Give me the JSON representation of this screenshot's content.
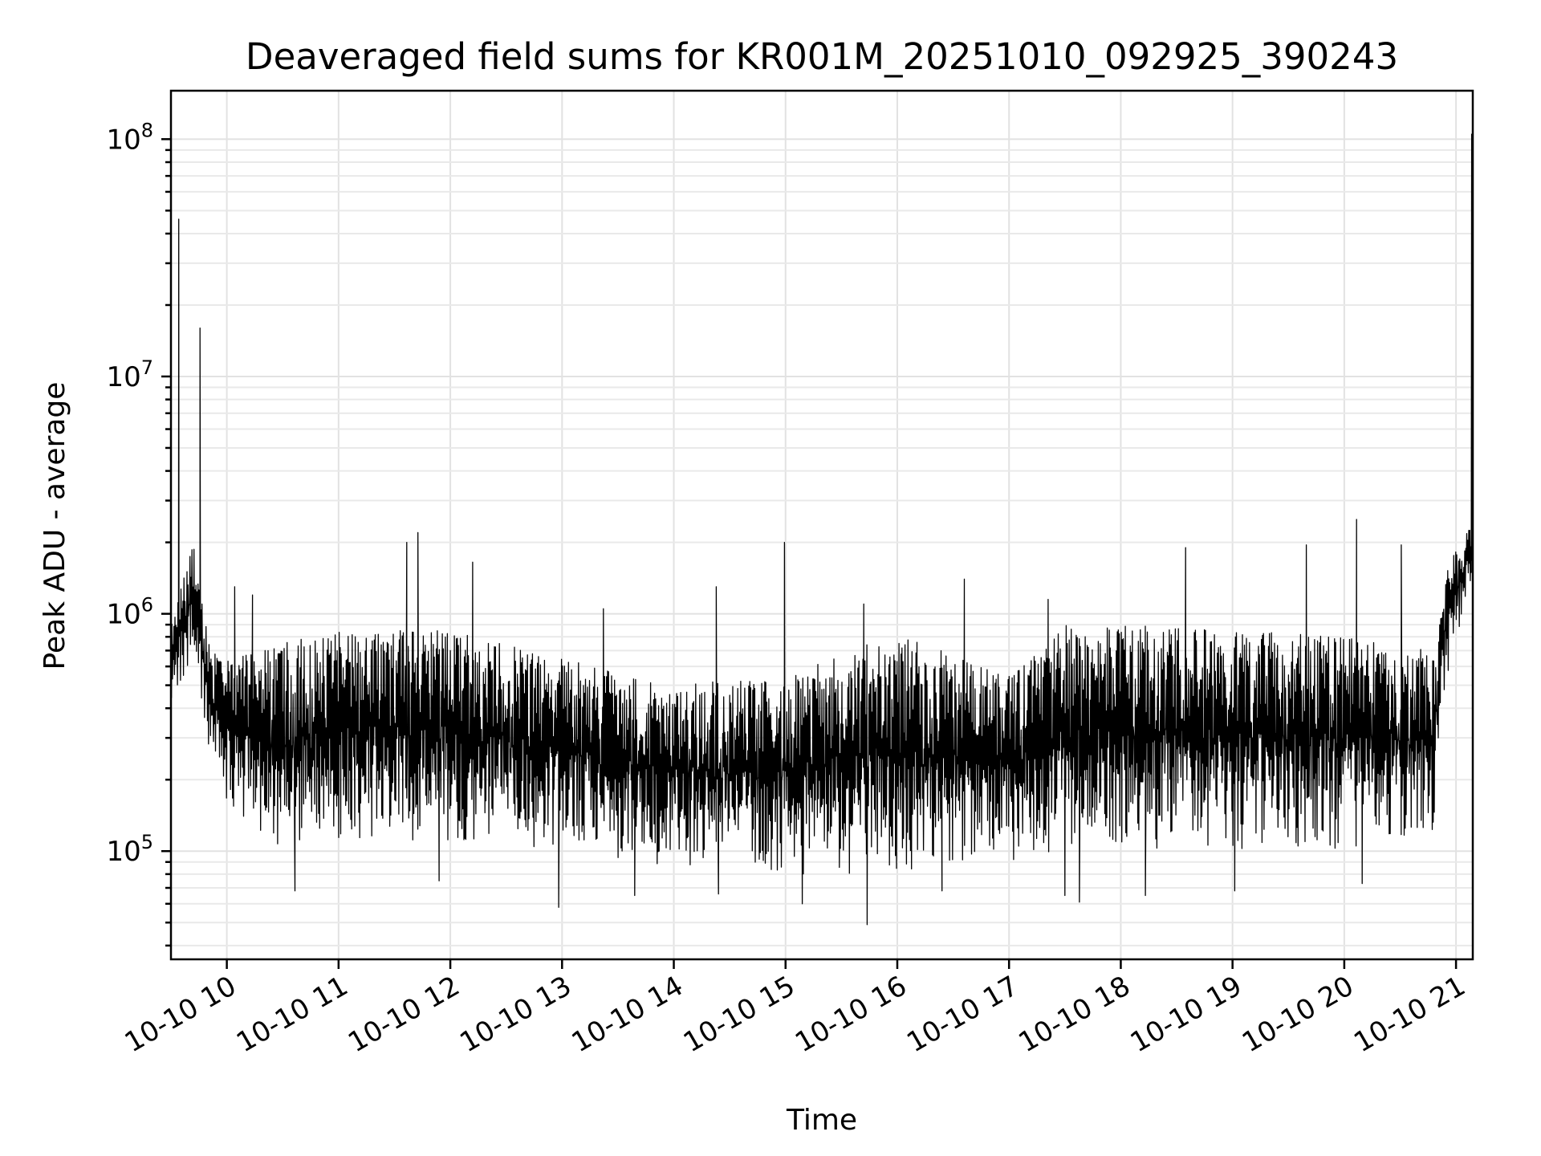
{
  "chart_data": {
    "type": "line",
    "title": "Deaveraged field sums for KR001M_20251010_092925_390243",
    "xlabel": "Time",
    "ylabel": "Peak ADU - average",
    "yscale": "log",
    "ylim": [
      35000,
      160000000
    ],
    "xlim_hours": [
      9.5,
      21.15
    ],
    "grid": true,
    "x_ticks": [
      {
        "hour": 10,
        "label": "10-10 10"
      },
      {
        "hour": 11,
        "label": "10-10 11"
      },
      {
        "hour": 12,
        "label": "10-10 12"
      },
      {
        "hour": 13,
        "label": "10-10 13"
      },
      {
        "hour": 14,
        "label": "10-10 14"
      },
      {
        "hour": 15,
        "label": "10-10 15"
      },
      {
        "hour": 16,
        "label": "10-10 16"
      },
      {
        "hour": 17,
        "label": "10-10 17"
      },
      {
        "hour": 18,
        "label": "10-10 18"
      },
      {
        "hour": 19,
        "label": "10-10 19"
      },
      {
        "hour": 20,
        "label": "10-10 20"
      },
      {
        "hour": 21,
        "label": "10-10 21"
      }
    ],
    "y_ticks": [
      {
        "value": 100000,
        "base": "10",
        "exp": "5"
      },
      {
        "value": 1000000,
        "base": "10",
        "exp": "6"
      },
      {
        "value": 10000000,
        "base": "10",
        "exp": "7"
      },
      {
        "value": 100000000,
        "base": "10",
        "exp": "8"
      }
    ],
    "series": [
      {
        "name": "Peak ADU - average",
        "envelope": [
          {
            "hour": 9.5,
            "low": 400000,
            "high": 900000
          },
          {
            "hour": 9.7,
            "low": 700000,
            "high": 2000000
          },
          {
            "hour": 9.85,
            "low": 250000,
            "high": 700000
          },
          {
            "hour": 10.0,
            "low": 150000,
            "high": 650000
          },
          {
            "hour": 10.5,
            "low": 100000,
            "high": 750000
          },
          {
            "hour": 11.0,
            "low": 110000,
            "high": 850000
          },
          {
            "hour": 12.0,
            "low": 110000,
            "high": 850000
          },
          {
            "hour": 13.0,
            "low": 100000,
            "high": 650000
          },
          {
            "hour": 14.0,
            "low": 85000,
            "high": 500000
          },
          {
            "hour": 15.0,
            "low": 80000,
            "high": 550000
          },
          {
            "hour": 16.0,
            "low": 80000,
            "high": 850000
          },
          {
            "hour": 17.0,
            "low": 90000,
            "high": 550000
          },
          {
            "hour": 17.5,
            "low": 100000,
            "high": 900000
          },
          {
            "hour": 18.0,
            "low": 100000,
            "high": 900000
          },
          {
            "hour": 19.0,
            "low": 100000,
            "high": 850000
          },
          {
            "hour": 20.0,
            "low": 100000,
            "high": 800000
          },
          {
            "hour": 20.8,
            "low": 120000,
            "high": 700000
          },
          {
            "hour": 20.9,
            "low": 500000,
            "high": 1500000
          },
          {
            "hour": 21.15,
            "low": 1500000,
            "high": 2500000
          }
        ],
        "spikes": [
          {
            "hour": 9.57,
            "value": 46000000
          },
          {
            "hour": 9.76,
            "value": 16000000
          },
          {
            "hour": 10.07,
            "value": 1300000
          },
          {
            "hour": 10.23,
            "value": 1200000
          },
          {
            "hour": 11.61,
            "value": 2000000
          },
          {
            "hour": 11.71,
            "value": 2200000
          },
          {
            "hour": 12.2,
            "value": 1650000
          },
          {
            "hour": 13.37,
            "value": 1050000
          },
          {
            "hour": 14.38,
            "value": 1300000
          },
          {
            "hour": 14.99,
            "value": 2000000
          },
          {
            "hour": 15.7,
            "value": 1100000
          },
          {
            "hour": 16.6,
            "value": 1400000
          },
          {
            "hour": 17.35,
            "value": 1150000
          },
          {
            "hour": 18.58,
            "value": 1900000
          },
          {
            "hour": 19.66,
            "value": 1950000
          },
          {
            "hour": 20.11,
            "value": 2500000
          },
          {
            "hour": 20.51,
            "value": 1950000
          },
          {
            "hour": 21.14,
            "value": 105000000
          }
        ],
        "dips": [
          {
            "hour": 10.61,
            "value": 68000
          },
          {
            "hour": 11.9,
            "value": 75000
          },
          {
            "hour": 12.97,
            "value": 58000
          },
          {
            "hour": 13.65,
            "value": 65000
          },
          {
            "hour": 14.4,
            "value": 66000
          },
          {
            "hour": 15.15,
            "value": 60000
          },
          {
            "hour": 15.73,
            "value": 49000
          },
          {
            "hour": 16.4,
            "value": 68000
          },
          {
            "hour": 17.5,
            "value": 65000
          },
          {
            "hour": 17.63,
            "value": 61000
          },
          {
            "hour": 18.22,
            "value": 65000
          },
          {
            "hour": 19.02,
            "value": 68000
          },
          {
            "hour": 20.16,
            "value": 73000
          }
        ]
      }
    ]
  }
}
